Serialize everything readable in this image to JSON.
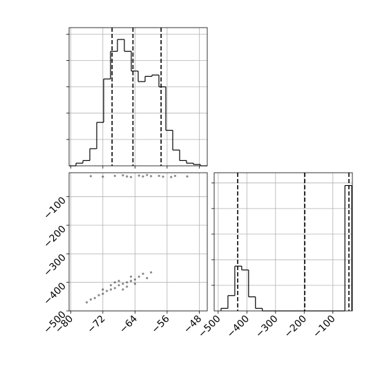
{
  "chart_data": [
    {
      "type": "histogram",
      "bins": [
        -80.4,
        -78.68,
        -76.96,
        -75.24,
        -73.52,
        -71.8,
        -70.08,
        -68.36,
        -66.64,
        -64.92,
        -63.2,
        -61.48,
        -59.76,
        -58.04,
        -56.32,
        -54.6,
        -52.88,
        -51.16,
        -49.44,
        -47.72,
        -46.0
      ],
      "counts": [
        0,
        2,
        4,
        13,
        33,
        66,
        87,
        96,
        87,
        72,
        64,
        68,
        69,
        60,
        27,
        12,
        4,
        2,
        1,
        0
      ],
      "quantiles": [
        -69.7,
        -64.5,
        -57.5
      ],
      "color": "#000000",
      "xlim": [
        -80.4,
        -46.0
      ],
      "ylim": [
        0,
        105
      ],
      "xticks": [
        -80,
        -72,
        -64,
        -56,
        -48
      ],
      "yticks": [
        20,
        40,
        60,
        80,
        100
      ],
      "grid": true
    },
    {
      "type": "scatter",
      "x": [
        -72,
        -70,
        -68,
        -66,
        -64,
        -69,
        -67,
        -65,
        -71,
        -73,
        -63,
        -62,
        -74,
        -75,
        -66,
        -70,
        -68,
        -64,
        -60,
        -76,
        -67,
        -65,
        -69,
        -72,
        -61,
        -75,
        -72,
        -69,
        -66,
        -63,
        -60,
        -57,
        -54,
        -51,
        -65,
        -61,
        -58,
        -67,
        -55,
        -62
      ],
      "y": [
        -440,
        -425,
        -410,
        -400,
        -390,
        -420,
        -405,
        -395,
        -430,
        -445,
        -380,
        -370,
        -455,
        -460,
        -415,
        -410,
        -395,
        -405,
        -365,
        -470,
        -425,
        -380,
        -400,
        -425,
        -385,
        -28,
        -30,
        -27,
        -29,
        -26,
        -28,
        -30,
        -27,
        -29,
        -31,
        -24,
        -27,
        -25,
        -31,
        -29
      ],
      "color": "#000000",
      "xlim": [
        -80.4,
        -46.0
      ],
      "ylim": [
        -500,
        -16
      ],
      "xticks": [
        {
          "value": -80,
          "label": "−80"
        },
        {
          "value": -72,
          "label": "−72"
        },
        {
          "value": -64,
          "label": "−64"
        },
        {
          "value": -56,
          "label": "−56"
        },
        {
          "value": -48,
          "label": "−48"
        }
      ],
      "yticks": [
        {
          "value": -100,
          "label": "−100"
        },
        {
          "value": -200,
          "label": "−200"
        },
        {
          "value": -300,
          "label": "−300"
        },
        {
          "value": -400,
          "label": "−400"
        },
        {
          "value": -500,
          "label": "−500"
        }
      ],
      "grid": true
    },
    {
      "type": "histogram",
      "bins": [
        -490,
        -466,
        -442,
        -418,
        -394,
        -370,
        -346,
        -322,
        -298,
        -274,
        -250,
        -226,
        -202,
        -178,
        -154,
        -130,
        -106,
        -82,
        -58,
        -34
      ],
      "counts": [
        2,
        12,
        35,
        32,
        11,
        2,
        0,
        0,
        0,
        0,
        0,
        0,
        0,
        0,
        0,
        0,
        0,
        0,
        98
      ],
      "quantiles": [
        -432,
        -198,
        -44
      ],
      "color": "#000000",
      "xlim": [
        -514,
        -32
      ],
      "ylim": [
        0,
        108
      ],
      "xticks": [
        {
          "value": -500,
          "label": "−500"
        },
        {
          "value": -400,
          "label": "−400"
        },
        {
          "value": -300,
          "label": "−300"
        },
        {
          "value": -200,
          "label": "−200"
        },
        {
          "value": -100,
          "label": "−100"
        }
      ],
      "yticks": [
        20,
        40,
        60,
        80,
        100
      ],
      "grid": true
    }
  ]
}
